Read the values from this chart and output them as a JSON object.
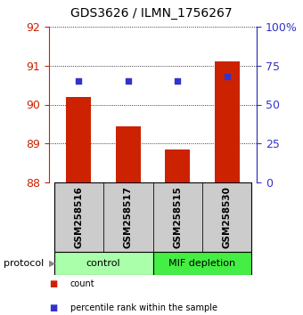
{
  "title": "GDS3626 / ILMN_1756267",
  "samples": [
    "GSM258516",
    "GSM258517",
    "GSM258515",
    "GSM258530"
  ],
  "bar_values": [
    90.2,
    89.45,
    88.85,
    91.1
  ],
  "percentile_values": [
    65,
    65,
    65,
    68
  ],
  "bar_bottom": 88.0,
  "ylim_left": [
    88.0,
    92.0
  ],
  "ylim_right": [
    0,
    100
  ],
  "yticks_left": [
    88,
    89,
    90,
    91,
    92
  ],
  "yticks_right": [
    0,
    25,
    50,
    75,
    100
  ],
  "ytick_labels_right": [
    "0",
    "25",
    "50",
    "75",
    "100%"
  ],
  "bar_color": "#cc2200",
  "dot_color": "#3333cc",
  "bar_width": 0.5,
  "groups": [
    {
      "label": "control",
      "start": 0,
      "end": 2,
      "color": "#aaffaa"
    },
    {
      "label": "MIF depletion",
      "start": 2,
      "end": 4,
      "color": "#44ee44"
    }
  ],
  "protocol_label": "protocol",
  "legend_items": [
    {
      "color": "#cc2200",
      "label": "count"
    },
    {
      "color": "#3333cc",
      "label": "percentile rank within the sample"
    }
  ],
  "sample_box_color": "#cccccc",
  "left_tick_color": "#cc2200",
  "right_tick_color": "#3333cc",
  "fig_width": 3.4,
  "fig_height": 3.54,
  "dpi": 100
}
